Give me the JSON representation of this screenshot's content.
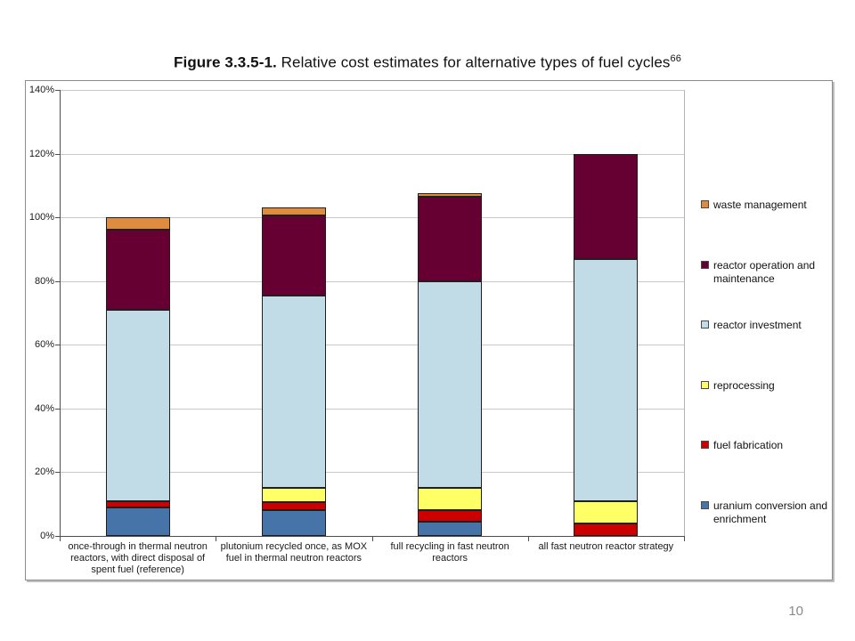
{
  "title": {
    "prefix": "Figure 3.3.5-1.",
    "text": " Relative cost estimates for alternative types of fuel cycles",
    "superscript": "66"
  },
  "page_number": "10",
  "chart_data": {
    "type": "bar",
    "stacked": true,
    "title": "Relative cost estimates for alternative types of fuel cycles",
    "xlabel": "",
    "ylabel": "",
    "ylim": [
      0,
      140
    ],
    "ytick_step": 20,
    "ytick_labels": [
      "0%",
      "20%",
      "40%",
      "60%",
      "80%",
      "100%",
      "120%",
      "140%"
    ],
    "grid": true,
    "legend_position": "right",
    "categories": [
      "once-through in thermal neutron reactors, with direct disposal of spent fuel (reference)",
      "plutonium recycled once, as MOX fuel in thermal neutron reactors",
      "full recycling in fast neutron reactors",
      "all fast neutron reactor strategy"
    ],
    "series": [
      {
        "name": "uranium conversion and enrichment",
        "color": "#4674A9",
        "values": [
          9,
          8,
          4.5,
          0
        ]
      },
      {
        "name": "fuel fabrication",
        "color": "#CC0000",
        "values": [
          2,
          2.5,
          3.5,
          4
        ]
      },
      {
        "name": "reprocessing",
        "color": "#FFFF66",
        "values": [
          0,
          4.5,
          7,
          7
        ]
      },
      {
        "name": "reactor investment",
        "color": "#C2DCE7",
        "values": [
          60,
          60.5,
          65,
          76
        ]
      },
      {
        "name": "reactor operation and maintenance",
        "color": "#660033",
        "values": [
          25,
          25,
          26.5,
          33
        ]
      },
      {
        "name": "waste management",
        "color": "#E08C3E",
        "values": [
          4,
          2.5,
          1,
          0
        ]
      }
    ],
    "stack_totals": [
      100,
      103,
      107.5,
      120
    ]
  }
}
